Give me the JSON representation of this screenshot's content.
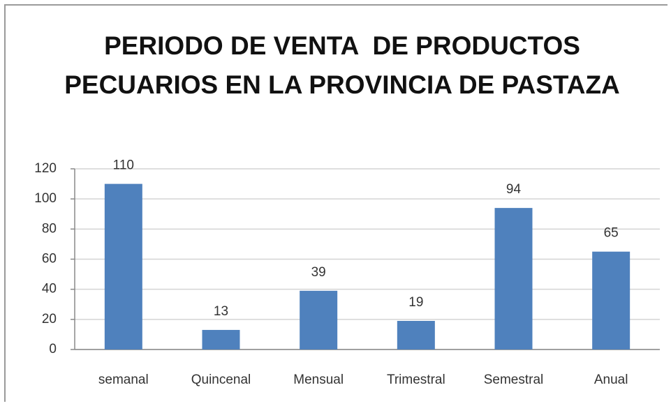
{
  "chart_data": {
    "type": "bar",
    "title": "PERIODO DE VENTA  DE PRODUCTOS PECUARIOS EN LA PROVINCIA DE PASTAZA",
    "categories": [
      "semanal",
      "Quincenal",
      "Mensual",
      "Trimestral",
      "Semestral",
      "Anual"
    ],
    "values": [
      110,
      13,
      39,
      19,
      94,
      65
    ],
    "color": "#4f81bd",
    "ylim": [
      0,
      120
    ],
    "yticks": [
      0,
      20,
      40,
      60,
      80,
      100,
      120
    ],
    "grid": true
  }
}
